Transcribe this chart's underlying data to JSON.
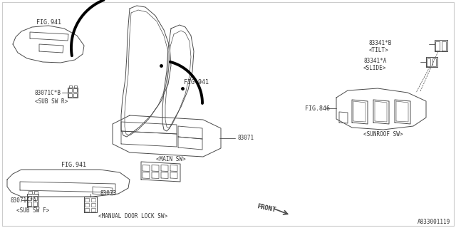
{
  "bg_color": "#ffffff",
  "line_color": "#4a4a4a",
  "text_color": "#333333",
  "border_color": "#aaaaaa",
  "diagram_id": "A833001119",
  "labels": {
    "fig941_top": "FIG.941",
    "fig941_mid": "FIG.941",
    "fig941_bot": "FIG.941",
    "fig846": "FIG.846",
    "part_83071c_b": "83071C*B",
    "sub_sw_r": "<SUB SW R>",
    "part_83071c_a": "83071C*A",
    "sub_sw_f": "<SUB SW F>",
    "part_83073": "83073",
    "manual_lock": "<MANUAL DOOR LOCK SW>",
    "part_83071": "83071",
    "main_sw": "<MAIN SW>",
    "part_83341b": "83341*B",
    "tilt": "<TILT>",
    "part_83341a": "83341*A",
    "slide": "<SLIDE>",
    "sunroof_sw": "<SUNROOF SW>",
    "front": "FRONT"
  }
}
